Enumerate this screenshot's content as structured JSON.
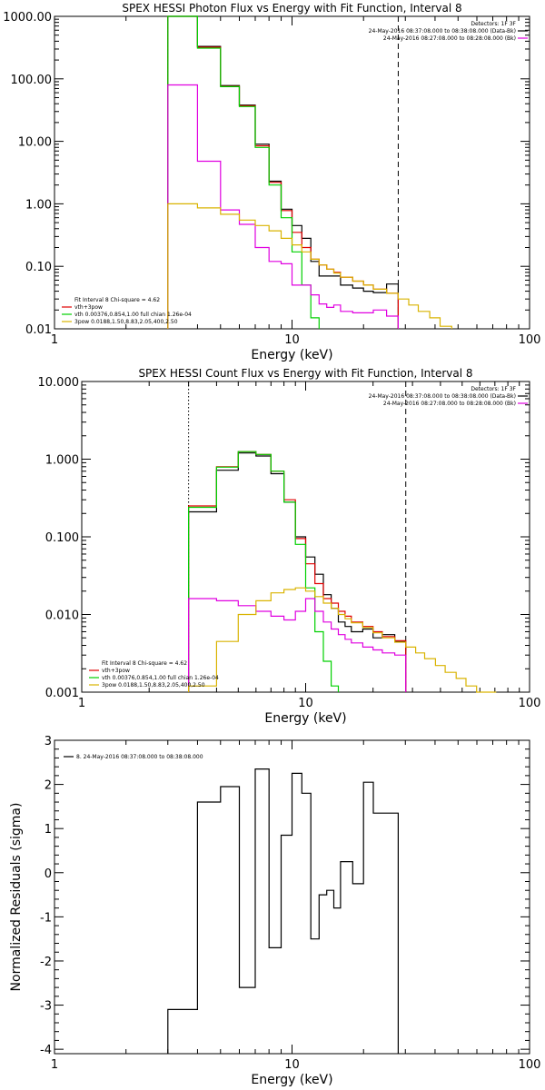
{
  "chart_data": [
    {
      "type": "line",
      "title": "SPEX HESSI Photon Flux vs Energy with Fit Function, Interval 8",
      "xlabel": "Energy (keV)",
      "ylabel": "",
      "xscale": "log",
      "yscale": "log",
      "xlim": [
        1,
        100
      ],
      "ylim": [
        0.01,
        1000
      ],
      "xticks": [
        {
          "v": 1,
          "label": "1"
        },
        {
          "v": 10,
          "label": "10"
        },
        {
          "v": 100,
          "label": "100"
        }
      ],
      "yticks": [
        {
          "v": 0.01,
          "label": "0.01"
        },
        {
          "v": 0.1,
          "label": "0.10"
        },
        {
          "v": 1,
          "label": "1.00"
        },
        {
          "v": 10,
          "label": "10.00"
        },
        {
          "v": 100,
          "label": "100.00"
        },
        {
          "v": 1000,
          "label": "1000.00"
        }
      ],
      "vlines": [
        {
          "x": 3.0,
          "style": "dotted",
          "color": "#ff8c00"
        },
        {
          "x": 28.0,
          "style": "dashed",
          "color": "#000000"
        }
      ],
      "legend_right": {
        "position": "top-right",
        "lines": [
          {
            "text": "Detectors: 1F 3F",
            "color": ""
          },
          {
            "text": "24-May-2016 08:37:08.000 to 08:38:08.000 (Data-Bk)",
            "color": "#000000"
          },
          {
            "text": "24-May-2016 08:27:08.000 to 08:28:08.000 (Bk)",
            "color": "#e000e0"
          }
        ]
      },
      "legend_left": {
        "position": "bottom-left",
        "lines": [
          {
            "text": "Fit Interval 8   Chi-square = 4.62",
            "color": ""
          },
          {
            "text": "vth+3pow",
            "color": "#e00000"
          },
          {
            "text": "vth 0.00376,0.854,1.00   full chian 1.26e-04",
            "color": "#00d000"
          },
          {
            "text": "3pow 0.0188,1.50,8.83,2.05,400,2.50",
            "color": "#d9b300"
          }
        ]
      },
      "series": [
        {
          "role": "data-bk",
          "color": "#000000",
          "edges": [
            3,
            4,
            5,
            6,
            7,
            8,
            9,
            10,
            11,
            12,
            13,
            14,
            15,
            16,
            18,
            20,
            22,
            25,
            28
          ],
          "values": [
            1000,
            330,
            78,
            38,
            9,
            2.3,
            0.82,
            0.45,
            0.28,
            0.12,
            0.07,
            0.07,
            0.07,
            0.05,
            0.045,
            0.04,
            0.038,
            0.052
          ]
        },
        {
          "role": "vth+3pow",
          "color": "#e00000",
          "edges": [
            3,
            4,
            5,
            6,
            7,
            8,
            9,
            10,
            11,
            12,
            13,
            14,
            15,
            16,
            18,
            20,
            22,
            25,
            28
          ],
          "values": [
            1000,
            320,
            76,
            37,
            8.5,
            2.2,
            0.78,
            0.35,
            0.2,
            0.13,
            0.105,
            0.09,
            0.08,
            0.067,
            0.058,
            0.05,
            0.043,
            0.037
          ]
        },
        {
          "role": "vth",
          "color": "#00d000",
          "edges": [
            3,
            4,
            5,
            6,
            7,
            8,
            9,
            10,
            11,
            12,
            13
          ],
          "values": [
            1000,
            310,
            75,
            36,
            8,
            2,
            0.6,
            0.17,
            0.05,
            0.015,
            0.009
          ]
        },
        {
          "role": "bk",
          "color": "#e000e0",
          "edges": [
            3,
            4,
            5,
            6,
            7,
            8,
            9,
            10,
            11,
            12,
            13,
            14,
            15,
            16,
            18,
            20,
            22,
            25,
            28
          ],
          "values": [
            80,
            4.8,
            0.8,
            0.47,
            0.2,
            0.12,
            0.11,
            0.05,
            0.05,
            0.035,
            0.025,
            0.022,
            0.024,
            0.019,
            0.018,
            0.018,
            0.02,
            0.016
          ]
        },
        {
          "role": "3pow",
          "color": "#d9b300",
          "edges": [
            3,
            4,
            5,
            6,
            7,
            8,
            9,
            10,
            11,
            12,
            13,
            14,
            15,
            16,
            18,
            20,
            22,
            25,
            28,
            31,
            34,
            38,
            42,
            47
          ],
          "values": [
            1.0,
            0.86,
            0.68,
            0.55,
            0.45,
            0.37,
            0.28,
            0.22,
            0.17,
            0.13,
            0.105,
            0.09,
            0.078,
            0.067,
            0.058,
            0.05,
            0.043,
            0.037,
            0.03,
            0.024,
            0.019,
            0.015,
            0.011
          ]
        }
      ]
    },
    {
      "type": "line",
      "title": "SPEX HESSI Count Flux vs Energy with Fit Function, Interval 8",
      "xlabel": "Energy (keV)",
      "ylabel": "",
      "xscale": "log",
      "yscale": "log",
      "xlim": [
        1,
        100
      ],
      "ylim": [
        0.001,
        10
      ],
      "xticks": [
        {
          "v": 1,
          "label": "1"
        },
        {
          "v": 10,
          "label": "10"
        },
        {
          "v": 100,
          "label": "100"
        }
      ],
      "yticks": [
        {
          "v": 0.001,
          "label": "0.001"
        },
        {
          "v": 0.01,
          "label": "0.010"
        },
        {
          "v": 0.1,
          "label": "0.100"
        },
        {
          "v": 1,
          "label": "1.000"
        },
        {
          "v": 10,
          "label": "10.000"
        }
      ],
      "vlines": [
        {
          "x": 3.0,
          "style": "dotted",
          "color": "#000000"
        },
        {
          "x": 28.0,
          "style": "dashed",
          "color": "#000000"
        }
      ],
      "legend_right": {
        "position": "top-right",
        "lines": [
          {
            "text": "Detectors: 1F 3F",
            "color": ""
          },
          {
            "text": "24-May-2016 08:37:08.000 to 08:38:08.000 (Data-Bk)",
            "color": "#000000"
          },
          {
            "text": "24-May-2016 08:27:08.000 to 08:28:08.000 (Bk)",
            "color": "#e000e0"
          }
        ]
      },
      "legend_left": {
        "position": "bottom-left",
        "lines": [
          {
            "text": "Fit Interval 8   Chi-square = 4.62",
            "color": ""
          },
          {
            "text": "vth+3pow",
            "color": "#e00000"
          },
          {
            "text": "vth 0.00376,0.854,1.00   full chian 1.26e-04",
            "color": "#00d000"
          },
          {
            "text": "3pow 0.0188,1.50,8.83,2.05,400,2.50",
            "color": "#d9b300"
          }
        ]
      },
      "series": [
        {
          "role": "data-bk",
          "color": "#000000",
          "edges": [
            3,
            4,
            5,
            6,
            7,
            8,
            9,
            10,
            11,
            12,
            13,
            14,
            15,
            16,
            18,
            20,
            22,
            25,
            28
          ],
          "values": [
            0.21,
            0.72,
            1.2,
            1.1,
            0.65,
            0.28,
            0.1,
            0.055,
            0.033,
            0.018,
            0.012,
            0.008,
            0.007,
            0.006,
            0.0065,
            0.005,
            0.0055,
            0.0045
          ]
        },
        {
          "role": "vth+3pow",
          "color": "#e00000",
          "edges": [
            3,
            4,
            5,
            6,
            7,
            8,
            9,
            10,
            11,
            12,
            13,
            14,
            15,
            16,
            18,
            20,
            22,
            25,
            28
          ],
          "values": [
            0.25,
            0.8,
            1.25,
            1.15,
            0.7,
            0.3,
            0.095,
            0.045,
            0.025,
            0.016,
            0.014,
            0.011,
            0.0095,
            0.008,
            0.007,
            0.006,
            0.0052,
            0.0046
          ]
        },
        {
          "role": "vth",
          "color": "#00d000",
          "edges": [
            3,
            4,
            5,
            6,
            7,
            8,
            9,
            10,
            11,
            12,
            13,
            14
          ],
          "values": [
            0.24,
            0.79,
            1.25,
            1.15,
            0.7,
            0.28,
            0.08,
            0.022,
            0.006,
            0.0025,
            0.0012
          ]
        },
        {
          "role": "bk",
          "color": "#e000e0",
          "edges": [
            3,
            4,
            5,
            6,
            7,
            8,
            9,
            10,
            11,
            12,
            13,
            14,
            15,
            16,
            18,
            20,
            22,
            25,
            28
          ],
          "values": [
            0.016,
            0.015,
            0.013,
            0.011,
            0.0095,
            0.0085,
            0.011,
            0.016,
            0.011,
            0.008,
            0.0065,
            0.0055,
            0.0048,
            0.0043,
            0.0038,
            0.0035,
            0.0032,
            0.003
          ]
        },
        {
          "role": "3pow",
          "color": "#d9b300",
          "edges": [
            3,
            4,
            5,
            6,
            7,
            8,
            9,
            10,
            11,
            12,
            13,
            14,
            15,
            16,
            18,
            20,
            22,
            25,
            28,
            31,
            34,
            38,
            42,
            47,
            52,
            58,
            64,
            71
          ],
          "values": [
            0.0012,
            0.0045,
            0.01,
            0.015,
            0.019,
            0.021,
            0.022,
            0.02,
            0.017,
            0.014,
            0.012,
            0.01,
            0.0088,
            0.0078,
            0.0068,
            0.0058,
            0.005,
            0.0044,
            0.0038,
            0.0032,
            0.0027,
            0.0022,
            0.0018,
            0.0015,
            0.0012,
            0.001,
            0.0008
          ]
        }
      ]
    },
    {
      "type": "line",
      "title": "",
      "xlabel": "Energy (keV)",
      "ylabel": "Normalized Residuals (sigma)",
      "xscale": "log",
      "yscale": "linear",
      "xlim": [
        1,
        100
      ],
      "ylim": [
        -4.1,
        3
      ],
      "xticks": [
        {
          "v": 1,
          "label": "1"
        },
        {
          "v": 10,
          "label": "10"
        },
        {
          "v": 100,
          "label": "100"
        }
      ],
      "yticks": [
        {
          "v": -4,
          "label": "-4"
        },
        {
          "v": -3,
          "label": "-3"
        },
        {
          "v": -2,
          "label": "-2"
        },
        {
          "v": -1,
          "label": "-1"
        },
        {
          "v": 0,
          "label": "0"
        },
        {
          "v": 1,
          "label": "1"
        },
        {
          "v": 2,
          "label": "2"
        },
        {
          "v": 3,
          "label": "3"
        }
      ],
      "legend_left": {
        "position": "top-left",
        "lines": [
          {
            "text": "8. 24-May-2016 08:37:08.000 to 08:38:08.000",
            "color": "#000000"
          }
        ]
      },
      "series": [
        {
          "role": "residuals",
          "color": "#000000",
          "edges": [
            3,
            4,
            5,
            6,
            7,
            8,
            9,
            10,
            11,
            12,
            13,
            14,
            15,
            16,
            18,
            20,
            22,
            25,
            28
          ],
          "values": [
            -3.1,
            1.6,
            1.95,
            -2.6,
            2.35,
            -1.7,
            0.85,
            2.25,
            1.8,
            -1.5,
            -0.5,
            -0.4,
            -0.8,
            0.25,
            -0.25,
            2.05,
            1.35,
            1.35
          ]
        }
      ]
    }
  ]
}
